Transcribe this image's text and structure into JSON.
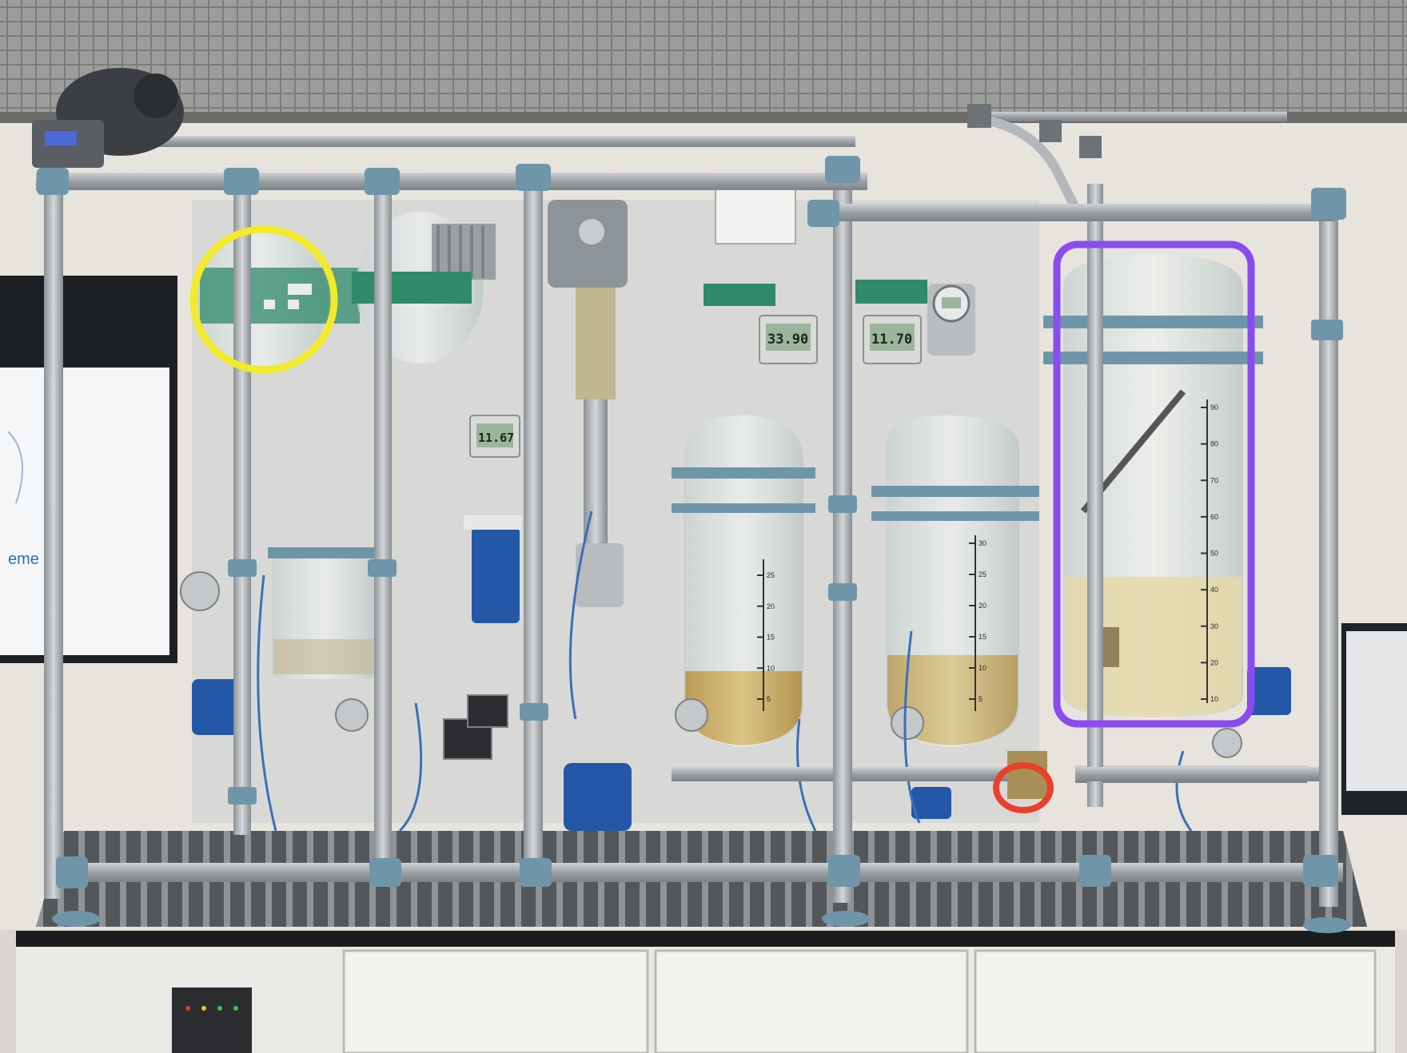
{
  "displays": [
    {
      "name": "display-center",
      "value": "33.90"
    },
    {
      "name": "display-right",
      "value": "11.70"
    },
    {
      "name": "display-left",
      "value": "11.67"
    }
  ],
  "background_screen_text": "eme",
  "vessel_scale_right": [
    "90",
    "80",
    "70",
    "60",
    "50",
    "40",
    "30",
    "20",
    "10"
  ],
  "vessel_scale_mid": [
    "30",
    "25",
    "20",
    "15",
    "10",
    "5"
  ],
  "vessel_scale_left": [
    "25",
    "20",
    "15",
    "10",
    "5"
  ],
  "markers": [
    {
      "name": "yellow-circle-marker",
      "color": "#f2ea2a"
    },
    {
      "name": "purple-rounded-rect-marker",
      "color": "#8a4cf0"
    },
    {
      "name": "red-circle-marker",
      "color": "#e8402a"
    }
  ],
  "colors": {
    "frame": "#a7abaf",
    "clamp": "#6f95a9",
    "glass": "#dfe6e4",
    "liquid": "#c9a85a",
    "pump_blue": "#2358a8",
    "panel_green": "#2f8a6a"
  }
}
